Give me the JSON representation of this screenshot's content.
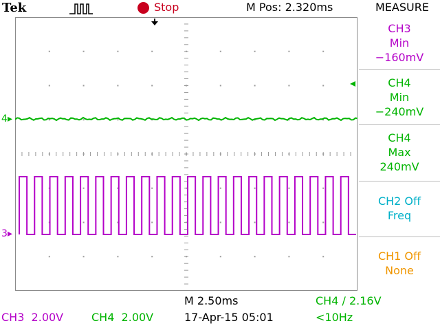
{
  "header": {
    "brand": "Tek",
    "trigger_icon": "square-pulse-icon",
    "run_state_icon": "stop-dot-icon",
    "run_state": "Stop",
    "m_pos": "M Pos: 2.320ms"
  },
  "measure_panel": {
    "title": "MEASURE",
    "items": [
      {
        "channel": "CH3",
        "stat": "Min",
        "value": "−160mV",
        "color": "#b400c8"
      },
      {
        "channel": "CH4",
        "stat": "Min",
        "value": "−240mV",
        "color": "#00b400"
      },
      {
        "channel": "CH4",
        "stat": "Max",
        "value": "240mV",
        "color": "#00b400"
      },
      {
        "channel": "CH2 Off",
        "stat": "Freq",
        "value": "",
        "color": "#00b0c8"
      },
      {
        "channel": "CH1 Off",
        "stat": "None",
        "value": "",
        "color": "#f09600"
      }
    ]
  },
  "markers": {
    "ch4_level": "4",
    "ch3_level": "3"
  },
  "footer": {
    "ch3_scale": "CH3  2.00V",
    "ch4_scale": "CH4  2.00V",
    "timebase": "M 2.50ms",
    "date": "17-Apr-15 05:01",
    "trigger": "CH4 ∕ 2.16V",
    "freq": "<10Hz"
  },
  "colors": {
    "ch3": "#b400c8",
    "ch4": "#00b400",
    "grid": "#9a9a9a"
  },
  "chart_data": {
    "type": "line",
    "title": "",
    "xlabel": "",
    "ylabel": "",
    "series": [
      {
        "name": "CH3",
        "waveform": "square",
        "periods": 22,
        "duty": 0.5
      },
      {
        "name": "CH4",
        "waveform": "flat"
      }
    ]
  }
}
